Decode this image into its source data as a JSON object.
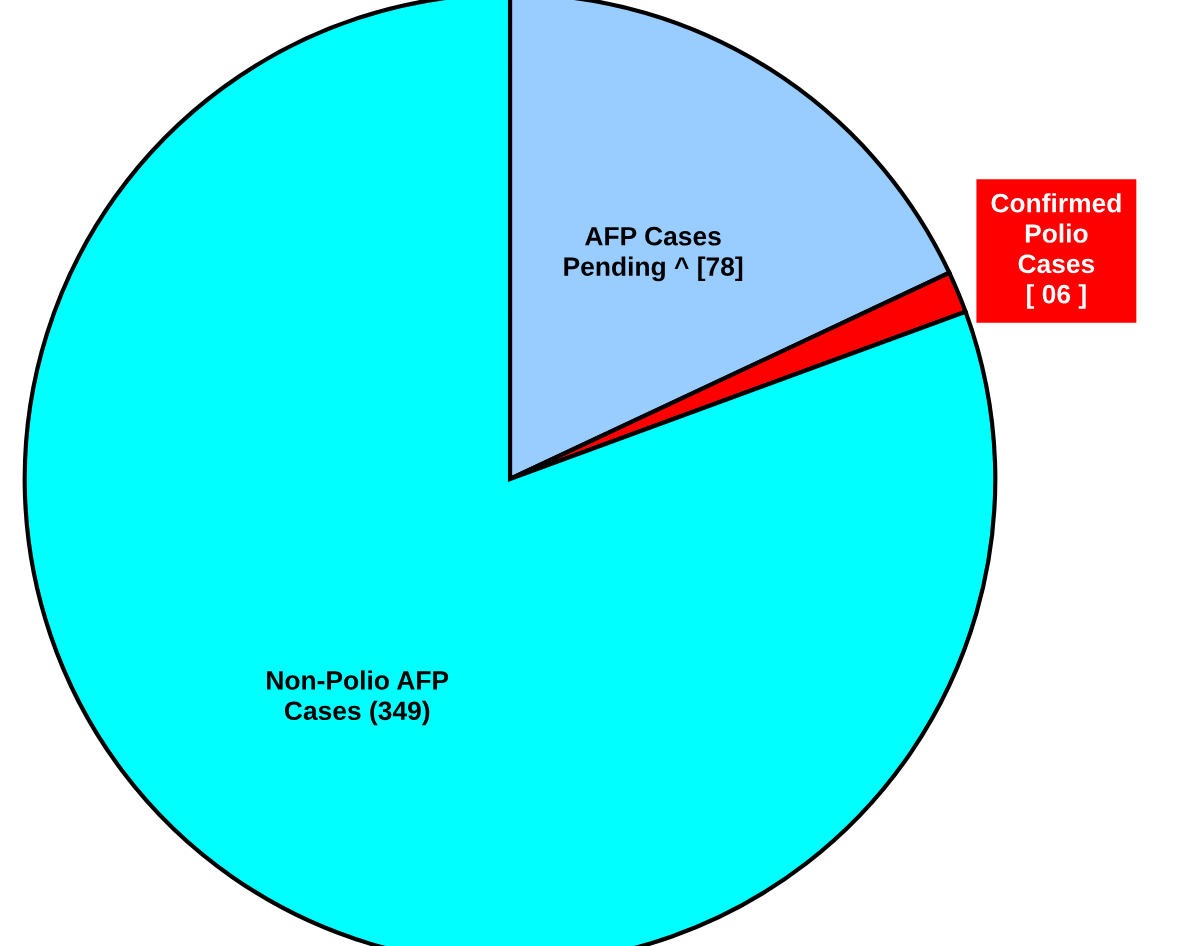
{
  "chart_data": {
    "type": "pie",
    "categories": [
      "AFP Cases\nPending ^ [78]",
      "Confirmed\nPolio\nCases\n[ 06 ]",
      "Non-Polio AFP\nCases (349)"
    ],
    "values": [
      78,
      6,
      349
    ],
    "colors": [
      "#99ccff",
      "#ff0000",
      "#00ffff"
    ]
  }
}
